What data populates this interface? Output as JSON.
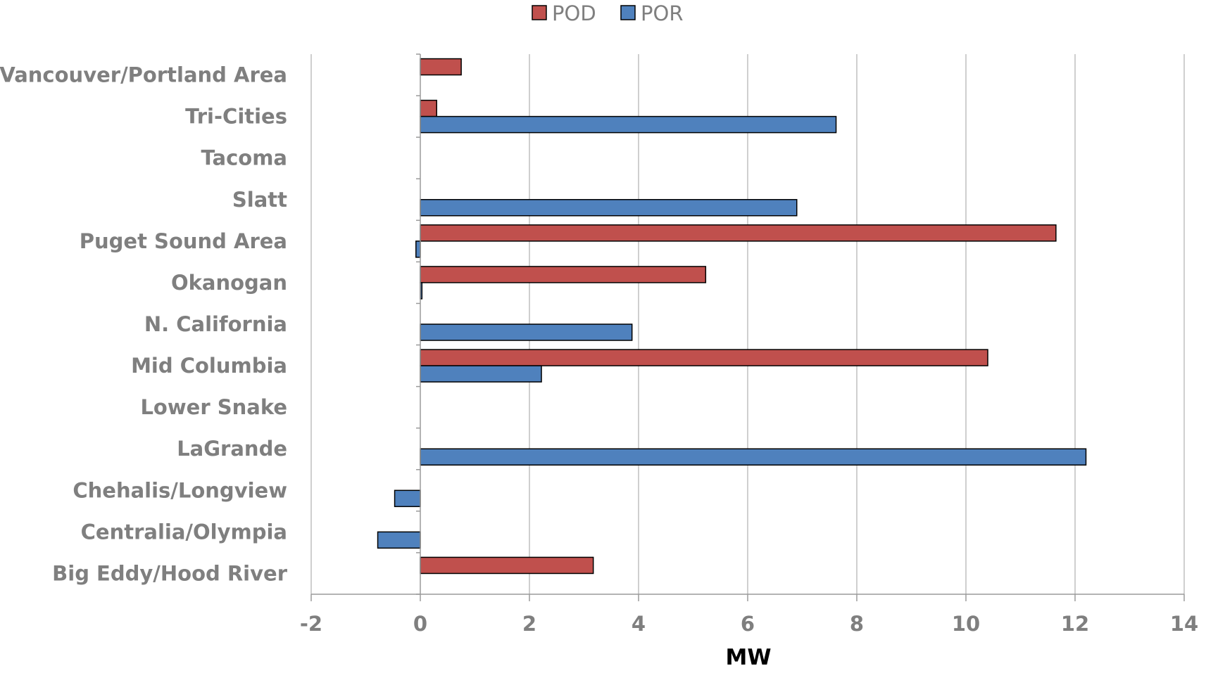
{
  "chart_data": {
    "type": "bar",
    "orientation": "horizontal",
    "categories": [
      "Vancouver/Portland Area",
      "Tri-Cities",
      "Tacoma",
      "Slatt",
      "Puget Sound Area",
      "Okanogan",
      "N. California",
      "Mid Columbia",
      "Lower Snake",
      "LaGrande",
      "Chehalis/Longview",
      "Centralia/Olympia",
      "Big Eddy/Hood River"
    ],
    "series": [
      {
        "name": "POD",
        "color": "#c0504d",
        "values": [
          0.75,
          0.3,
          0,
          0,
          11.65,
          5.23,
          0,
          10.4,
          0,
          0,
          0,
          0,
          3.17
        ]
      },
      {
        "name": "POR",
        "color": "#4f81bd",
        "values": [
          0,
          7.62,
          0,
          6.9,
          -0.08,
          0.03,
          3.88,
          2.22,
          0,
          12.2,
          -0.47,
          -0.78,
          0
        ]
      }
    ],
    "xlim": [
      -2,
      14
    ],
    "xticks": [
      "-2",
      "0",
      "2",
      "4",
      "6",
      "8",
      "10",
      "12",
      "14"
    ],
    "xlabel": "MW",
    "ylabel": "",
    "title": "",
    "grid": "vertical",
    "legend": "top-center"
  }
}
